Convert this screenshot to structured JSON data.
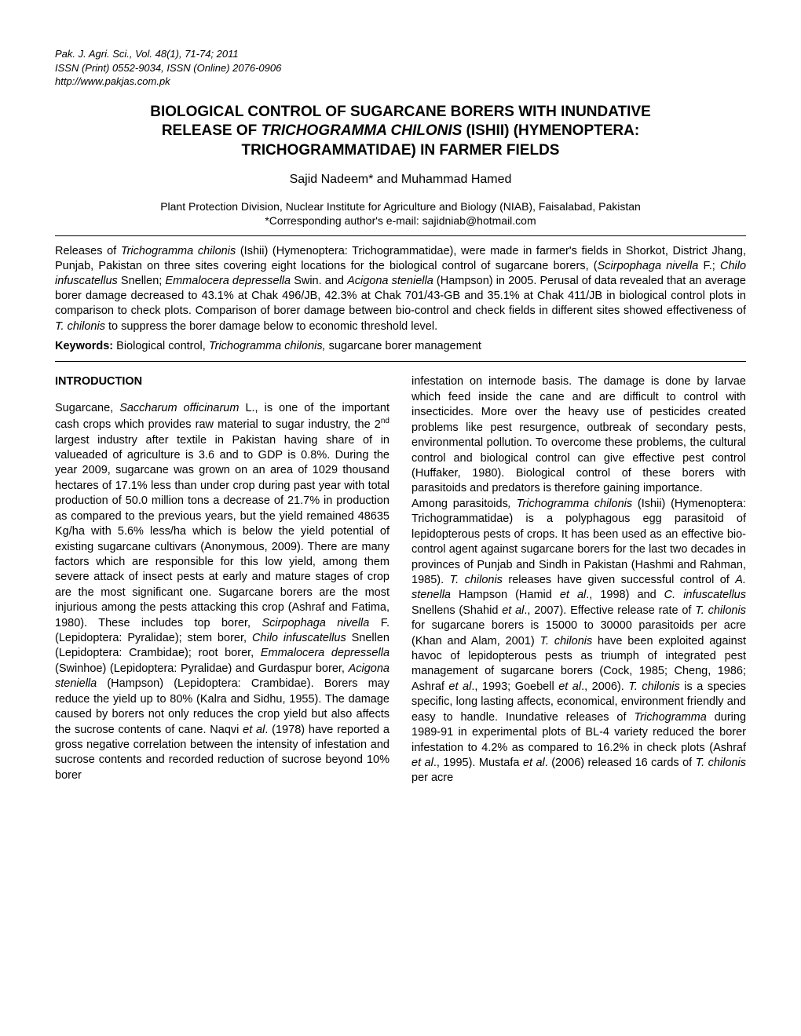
{
  "journal": {
    "line1": "Pak. J. Agri. Sci., Vol. 48(1), 71-74; 2011",
    "line2": "ISSN (Print) 0552-9034, ISSN (Online) 2076-0906",
    "line3": "http://www.pakjas.com.pk"
  },
  "title": {
    "line1_a": "BIOLOGICAL CONTROL OF SUGARCANE BORERS WITH INUNDATIVE",
    "line2_a": "RELEASE OF ",
    "line2_species": "TRICHOGRAMMA CHILONIS",
    "line2_b": " (ISHII) (HYMENOPTERA:",
    "line3": "TRICHOGRAMMATIDAE) IN FARMER FIELDS"
  },
  "authors": "Sajid Nadeem* and Muhammad Hamed",
  "affiliation": {
    "line1": "Plant Protection Division, Nuclear Institute for Agriculture and Biology (NIAB), Faisalabad, Pakistan",
    "line2": "*Corresponding author's e-mail: sajidniab@hotmail.com"
  },
  "abstract": {
    "a1": "Releases of ",
    "i1": "Trichogramma chilonis",
    "a2": " (Ishii) (Hymenoptera: Trichogrammatidae), were made in farmer's fields in Shorkot, District Jhang, Punjab, Pakistan on three sites covering eight locations for the biological control of sugarcane borers, (",
    "i2": "Scirpophaga nivella",
    "a3": " F.; ",
    "i3": "Chilo infuscatellus",
    "a4": " Snellen; ",
    "i4": "Emmalocera depressella",
    "a5": " Swin. and ",
    "i5": "Acigona steniella",
    "a6": " (Hampson) in 2005. Perusal of data revealed that an average borer damage decreased to 43.1% at Chak 496/JB, 42.3% at Chak 701/43-GB and 35.1% at Chak 411/JB in biological control plots in comparison to check plots. Comparison of borer damage between bio-control and check fields in different sites showed effectiveness of ",
    "i6": "T. chilonis",
    "a7": " to suppress the borer damage below to economic threshold level."
  },
  "keywords": {
    "label": "Keywords:",
    "k1": " Biological control, ",
    "ki": "Trichogramma chilonis,",
    "k2": " sugarcane borer management"
  },
  "section_heading": "INTRODUCTION",
  "col1": {
    "p1a": "Sugarcane, ",
    "p1i1": "Saccharum officinarum",
    "p1b": " L., is one of the important cash crops which provides raw material to sugar industry, the 2",
    "p1sup": "nd",
    "p1c": " largest industry after textile in Pakistan having share of in valueaded of agriculture is 3.6 and to GDP is 0.8%. During the year 2009, sugarcane was grown on an area of 1029 thousand hectares of 17.1% less than under crop during past year with total production of 50.0 million tons a decrease of 21.7% in production as compared to the previous years, but the yield remained 48635 Kg/ha with 5.6% less/ha which is below the yield potential of existing sugarcane cultivars (Anonymous, 2009). There are many factors which are responsible for this low yield, among them severe attack of insect pests at early and mature stages of crop are the most significant one. Sugarcane borers are the most injurious among the pests attacking this crop (Ashraf and Fatima, 1980). These includes top borer, ",
    "p1i2": "Scirpophaga nivella",
    "p1d": " F. (Lepidoptera: Pyralidae); stem borer, ",
    "p1i3": "Chilo infuscatellus",
    "p1e": " Snellen (Lepidoptera: Crambidae); root borer, ",
    "p1i4": "Emmalocera depressella",
    "p1f": " (Swinhoe) (Lepidoptera: Pyralidae) and Gurdaspur borer, ",
    "p1i5": "Acigona steniella",
    "p1g": " (Hampson) (Lepidoptera: Crambidae). Borers may reduce the yield up to 80% (Kalra and Sidhu, 1955). The damage caused by borers not only reduces the crop yield but also affects the sucrose contents of cane. Naqvi ",
    "p1i6": "et al",
    "p1h": ". (1978) have reported a gross negative correlation between the intensity of infestation and sucrose contents and recorded reduction of sucrose beyond 10% borer"
  },
  "col2": {
    "p1": "infestation on internode basis. The damage is done by larvae which feed inside the cane and are difficult to control with insecticides. More over the heavy use of pesticides created problems like pest resurgence, outbreak of secondary pests, environmental pollution. To overcome these problems, the cultural control and biological control can give effective pest control (Huffaker, 1980). Biological control of these borers with parasitoids and predators is therefore gaining importance.",
    "p2a": "Among parasitoids",
    "p2i1": ", Trichogramma chilonis",
    "p2b": " (Ishii) (Hymenoptera: Trichogrammatidae)  is a polyphagous egg parasitoid of lepidopterous pests of crops. It has been used as an effective bio-control agent against sugarcane borers for the last two decades in provinces of Punjab and Sindh in Pakistan (Hashmi and Rahman, 1985). ",
    "p2i2": "T. chilonis",
    "p2c": " releases have given successful control of ",
    "p2i3": "A. stenella",
    "p2d": " Hampson (Hamid ",
    "p2i4": "et al",
    "p2e": "., 1998) and ",
    "p2i5": "C. infuscatellus",
    "p2f": " Snellens (Shahid ",
    "p2i6": "et al",
    "p2g": "., 2007). Effective release rate of ",
    "p2i7": "T. chilonis",
    "p2h": " for sugarcane borers is 15000 to 30000 parasitoids per acre (Khan and Alam, 2001) ",
    "p2i8": "T. chilonis",
    "p2j": " have been exploited against havoc of lepidopterous pests as triumph of integrated pest management of sugarcane borers (Cock, 1985; Cheng, 1986; Ashraf ",
    "p2i9": "et al",
    "p2k": "., 1993; Goebell ",
    "p2i10": "et al",
    "p2l": "., 2006). ",
    "p2i11": "T. chilonis",
    "p2m": " is a species specific, long lasting affects, economical, environment friendly and easy to handle.  Inundative releases of ",
    "p2i12": "Trichogramma",
    "p2n": " during 1989-91 in experimental plots of BL-4 variety reduced the borer infestation to 4.2% as compared to 16.2% in check plots (Ashraf ",
    "p2i13": "et al",
    "p2o": "., 1995).  Mustafa ",
    "p2i14": "et al",
    "p2p": ". (2006) released 16 cards of ",
    "p2i15": "T. chilonis",
    "p2q": " per acre"
  }
}
